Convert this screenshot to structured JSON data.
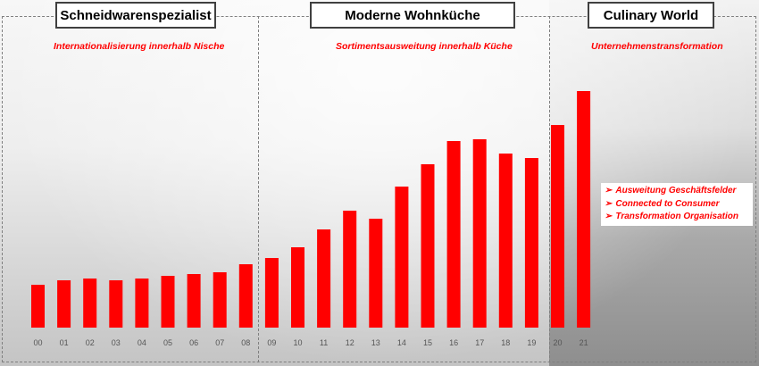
{
  "phases": [
    {
      "title": "Schneidwarenspezialist",
      "subtitle": "Internationalisierung innerhalb Nische"
    },
    {
      "title": "Moderne Wohnküche",
      "subtitle": "Sortimentsausweitung innerhalb Küche"
    },
    {
      "title": "Culinary World",
      "subtitle": "Unternehmenstransformation"
    }
  ],
  "culinary_world_points": [
    "Ausweitung Geschäftsfelder",
    "Connected to Consumer",
    "Transformation Organisation"
  ],
  "colors": {
    "bar": "#ff0000",
    "accent_text": "#ff0000",
    "box_border": "#404040",
    "divider": "#7f7f7f"
  },
  "icons": {
    "bullet": "➢"
  },
  "chart_data": {
    "type": "bar",
    "categories": [
      "00",
      "01",
      "02",
      "03",
      "04",
      "05",
      "06",
      "07",
      "08",
      "09",
      "10",
      "11",
      "12",
      "13",
      "14",
      "15",
      "16",
      "17",
      "18",
      "19",
      "20",
      "21"
    ],
    "values": [
      48,
      53,
      55,
      53,
      55,
      58,
      60,
      62,
      71,
      78,
      90,
      110,
      131,
      122,
      158,
      183,
      209,
      211,
      195,
      190,
      227,
      265
    ],
    "ylim": [
      0,
      300
    ],
    "title": "",
    "xlabel": "",
    "ylabel": "",
    "grid": false,
    "legend": false
  }
}
